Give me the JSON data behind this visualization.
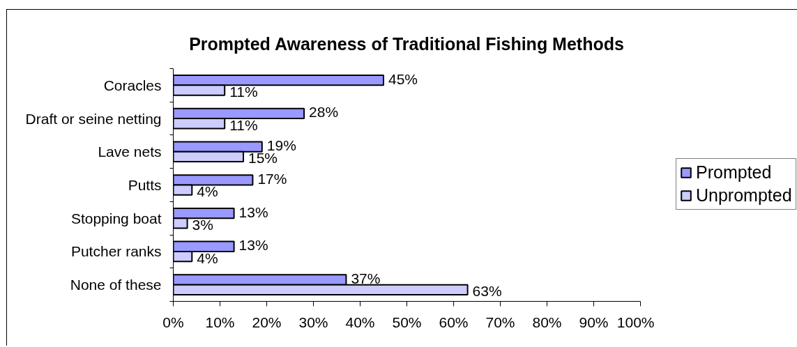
{
  "chart_data": {
    "type": "bar",
    "orientation": "horizontal",
    "title": "Prompted Awareness of Traditional Fishing Methods",
    "categories": [
      "Coracles",
      "Draft or seine netting",
      "Lave nets",
      "Putts",
      "Stopping boat",
      "Putcher ranks",
      "None of these"
    ],
    "series": [
      {
        "name": "Prompted",
        "color": "#9999ff",
        "values": [
          45,
          28,
          19,
          17,
          13,
          13,
          37
        ],
        "value_labels": [
          "45%",
          "28%",
          "19%",
          "17%",
          "13%",
          "13%",
          "37%"
        ]
      },
      {
        "name": "Unprompted",
        "color": "#ccccff",
        "values": [
          11,
          11,
          15,
          4,
          3,
          4,
          63
        ],
        "value_labels": [
          "11%",
          "11%",
          "15%",
          "4%",
          "3%",
          "4%",
          "63%"
        ]
      }
    ],
    "xlim": [
      0,
      100
    ],
    "xticks": [
      {
        "value": 0,
        "label": "0%"
      },
      {
        "value": 10,
        "label": "10%"
      },
      {
        "value": 20,
        "label": "20%"
      },
      {
        "value": 30,
        "label": "30%"
      },
      {
        "value": 40,
        "label": "40%"
      },
      {
        "value": 50,
        "label": "50%"
      },
      {
        "value": 60,
        "label": "60%"
      },
      {
        "value": 70,
        "label": "70%"
      },
      {
        "value": 80,
        "label": "80%"
      },
      {
        "value": 90,
        "label": "90%"
      },
      {
        "value": 100,
        "label": "100%"
      }
    ],
    "legend": "right"
  }
}
